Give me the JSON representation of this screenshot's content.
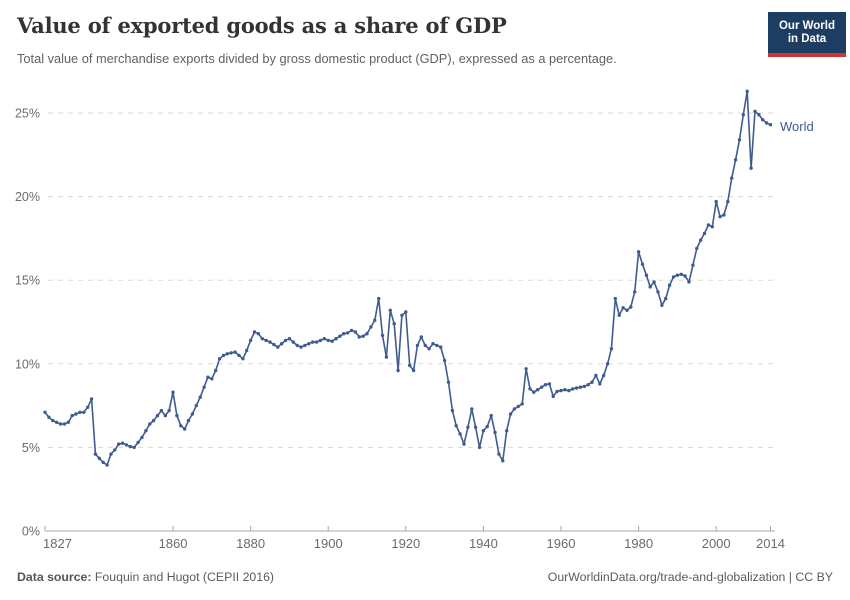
{
  "header": {
    "title": "Value of exported goods as a share of GDP",
    "subtitle": "Total value of merchandise exports divided by gross domestic product (GDP), expressed as a percentage.",
    "logo": {
      "line1": "Our World",
      "line2": "in Data",
      "bg_color": "#1d3d63",
      "stripe_color": "#d13434"
    }
  },
  "chart_data": {
    "type": "line",
    "title": "Value of exported goods as a share of GDP",
    "xlabel": "",
    "ylabel": "",
    "xlim": [
      1827,
      2014
    ],
    "ylim": [
      0,
      26.5
    ],
    "grid": "horizontal-dashed",
    "legend_position": "end-of-line",
    "line_color": "#3e5c8f",
    "marker": "circle",
    "x_tick_labels": [
      1827,
      1860,
      1880,
      1900,
      1920,
      1940,
      1960,
      1980,
      2000,
      2014
    ],
    "y_ticks": [
      {
        "value": 0,
        "label": "0%"
      },
      {
        "value": 5,
        "label": "5%"
      },
      {
        "value": 10,
        "label": "10%"
      },
      {
        "value": 15,
        "label": "15%"
      },
      {
        "value": 20,
        "label": "20%"
      },
      {
        "value": 25,
        "label": "25%"
      }
    ],
    "series": [
      {
        "name": "World",
        "year_start": 1827,
        "year_end": 2014,
        "values": [
          7.1,
          6.8,
          6.6,
          6.5,
          6.4,
          6.4,
          6.5,
          6.9,
          7.0,
          7.1,
          7.1,
          7.4,
          7.9,
          4.6,
          4.35,
          4.1,
          3.95,
          4.6,
          4.85,
          5.2,
          5.25,
          5.15,
          5.05,
          5.0,
          5.3,
          5.6,
          6.0,
          6.4,
          6.6,
          6.9,
          7.2,
          6.9,
          7.2,
          8.3,
          6.9,
          6.3,
          6.1,
          6.6,
          7.0,
          7.5,
          8.0,
          8.6,
          9.2,
          9.1,
          9.6,
          10.3,
          10.5,
          10.6,
          10.65,
          10.7,
          10.5,
          10.3,
          10.8,
          11.4,
          11.9,
          11.8,
          11.5,
          11.4,
          11.3,
          11.15,
          11.0,
          11.2,
          11.4,
          11.5,
          11.3,
          11.1,
          11.0,
          11.1,
          11.2,
          11.3,
          11.3,
          11.4,
          11.5,
          11.4,
          11.35,
          11.5,
          11.65,
          11.8,
          11.85,
          12.0,
          11.9,
          11.6,
          11.65,
          11.8,
          12.2,
          12.6,
          13.9,
          11.7,
          10.4,
          13.2,
          12.4,
          9.6,
          12.9,
          13.1,
          9.9,
          9.6,
          11.1,
          11.6,
          11.1,
          10.9,
          11.2,
          11.1,
          11.0,
          10.2,
          8.9,
          7.2,
          6.3,
          5.8,
          5.2,
          6.2,
          7.3,
          6.2,
          5.0,
          6.0,
          6.25,
          6.9,
          5.9,
          4.6,
          4.2,
          6.0,
          7.0,
          7.3,
          7.45,
          7.6,
          9.7,
          8.5,
          8.3,
          8.45,
          8.6,
          8.75,
          8.8,
          8.05,
          8.35,
          8.4,
          8.45,
          8.4,
          8.5,
          8.55,
          8.6,
          8.65,
          8.75,
          8.9,
          9.3,
          8.8,
          9.3,
          10.0,
          10.9,
          13.9,
          12.9,
          13.35,
          13.2,
          13.4,
          14.3,
          16.7,
          15.95,
          15.3,
          14.6,
          14.9,
          14.3,
          13.5,
          13.9,
          14.7,
          15.2,
          15.3,
          15.35,
          15.25,
          14.9,
          15.9,
          16.9,
          17.4,
          17.8,
          18.3,
          18.2,
          19.7,
          18.8,
          18.9,
          19.7,
          21.1,
          22.2,
          23.4,
          24.9,
          26.3,
          21.7,
          25.1,
          24.9,
          24.6,
          24.4,
          24.3
        ]
      }
    ]
  },
  "footer": {
    "source_label": "Data source:",
    "source_text": " Fouquin and Hugot (CEPII 2016)",
    "url_text": "OurWorldinData.org/trade-and-globalization | CC BY"
  }
}
